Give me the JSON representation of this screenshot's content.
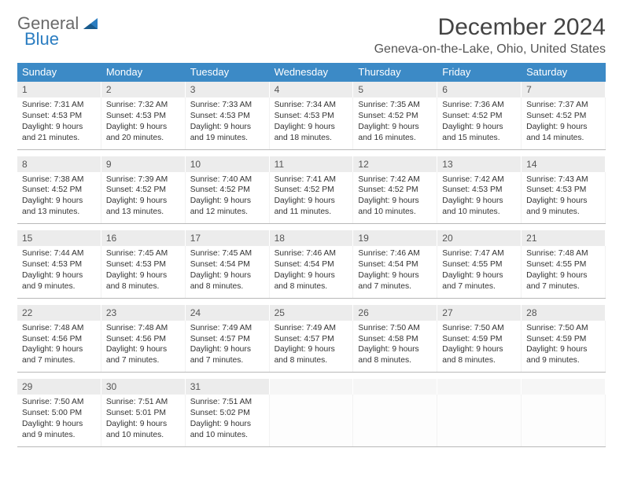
{
  "brand": {
    "part1": "General",
    "part2": "Blue",
    "accent_color": "#2b7dc1",
    "gray_color": "#6a6a6a"
  },
  "title": {
    "month": "December 2024",
    "location": "Geneva-on-the-Lake, Ohio, United States"
  },
  "colors": {
    "header_bg": "#3c8ac6",
    "header_fg": "#ffffff",
    "daynum_bg": "#ececec",
    "separator": "#b9b9b9",
    "text": "#333333"
  },
  "dow": [
    "Sunday",
    "Monday",
    "Tuesday",
    "Wednesday",
    "Thursday",
    "Friday",
    "Saturday"
  ],
  "weeks": [
    {
      "days": [
        {
          "n": "1",
          "sunrise": "Sunrise: 7:31 AM",
          "sunset": "Sunset: 4:53 PM",
          "day1": "Daylight: 9 hours",
          "day2": "and 21 minutes."
        },
        {
          "n": "2",
          "sunrise": "Sunrise: 7:32 AM",
          "sunset": "Sunset: 4:53 PM",
          "day1": "Daylight: 9 hours",
          "day2": "and 20 minutes."
        },
        {
          "n": "3",
          "sunrise": "Sunrise: 7:33 AM",
          "sunset": "Sunset: 4:53 PM",
          "day1": "Daylight: 9 hours",
          "day2": "and 19 minutes."
        },
        {
          "n": "4",
          "sunrise": "Sunrise: 7:34 AM",
          "sunset": "Sunset: 4:53 PM",
          "day1": "Daylight: 9 hours",
          "day2": "and 18 minutes."
        },
        {
          "n": "5",
          "sunrise": "Sunrise: 7:35 AM",
          "sunset": "Sunset: 4:52 PM",
          "day1": "Daylight: 9 hours",
          "day2": "and 16 minutes."
        },
        {
          "n": "6",
          "sunrise": "Sunrise: 7:36 AM",
          "sunset": "Sunset: 4:52 PM",
          "day1": "Daylight: 9 hours",
          "day2": "and 15 minutes."
        },
        {
          "n": "7",
          "sunrise": "Sunrise: 7:37 AM",
          "sunset": "Sunset: 4:52 PM",
          "day1": "Daylight: 9 hours",
          "day2": "and 14 minutes."
        }
      ]
    },
    {
      "days": [
        {
          "n": "8",
          "sunrise": "Sunrise: 7:38 AM",
          "sunset": "Sunset: 4:52 PM",
          "day1": "Daylight: 9 hours",
          "day2": "and 13 minutes."
        },
        {
          "n": "9",
          "sunrise": "Sunrise: 7:39 AM",
          "sunset": "Sunset: 4:52 PM",
          "day1": "Daylight: 9 hours",
          "day2": "and 13 minutes."
        },
        {
          "n": "10",
          "sunrise": "Sunrise: 7:40 AM",
          "sunset": "Sunset: 4:52 PM",
          "day1": "Daylight: 9 hours",
          "day2": "and 12 minutes."
        },
        {
          "n": "11",
          "sunrise": "Sunrise: 7:41 AM",
          "sunset": "Sunset: 4:52 PM",
          "day1": "Daylight: 9 hours",
          "day2": "and 11 minutes."
        },
        {
          "n": "12",
          "sunrise": "Sunrise: 7:42 AM",
          "sunset": "Sunset: 4:52 PM",
          "day1": "Daylight: 9 hours",
          "day2": "and 10 minutes."
        },
        {
          "n": "13",
          "sunrise": "Sunrise: 7:42 AM",
          "sunset": "Sunset: 4:53 PM",
          "day1": "Daylight: 9 hours",
          "day2": "and 10 minutes."
        },
        {
          "n": "14",
          "sunrise": "Sunrise: 7:43 AM",
          "sunset": "Sunset: 4:53 PM",
          "day1": "Daylight: 9 hours",
          "day2": "and 9 minutes."
        }
      ]
    },
    {
      "days": [
        {
          "n": "15",
          "sunrise": "Sunrise: 7:44 AM",
          "sunset": "Sunset: 4:53 PM",
          "day1": "Daylight: 9 hours",
          "day2": "and 9 minutes."
        },
        {
          "n": "16",
          "sunrise": "Sunrise: 7:45 AM",
          "sunset": "Sunset: 4:53 PM",
          "day1": "Daylight: 9 hours",
          "day2": "and 8 minutes."
        },
        {
          "n": "17",
          "sunrise": "Sunrise: 7:45 AM",
          "sunset": "Sunset: 4:54 PM",
          "day1": "Daylight: 9 hours",
          "day2": "and 8 minutes."
        },
        {
          "n": "18",
          "sunrise": "Sunrise: 7:46 AM",
          "sunset": "Sunset: 4:54 PM",
          "day1": "Daylight: 9 hours",
          "day2": "and 8 minutes."
        },
        {
          "n": "19",
          "sunrise": "Sunrise: 7:46 AM",
          "sunset": "Sunset: 4:54 PM",
          "day1": "Daylight: 9 hours",
          "day2": "and 7 minutes."
        },
        {
          "n": "20",
          "sunrise": "Sunrise: 7:47 AM",
          "sunset": "Sunset: 4:55 PM",
          "day1": "Daylight: 9 hours",
          "day2": "and 7 minutes."
        },
        {
          "n": "21",
          "sunrise": "Sunrise: 7:48 AM",
          "sunset": "Sunset: 4:55 PM",
          "day1": "Daylight: 9 hours",
          "day2": "and 7 minutes."
        }
      ]
    },
    {
      "days": [
        {
          "n": "22",
          "sunrise": "Sunrise: 7:48 AM",
          "sunset": "Sunset: 4:56 PM",
          "day1": "Daylight: 9 hours",
          "day2": "and 7 minutes."
        },
        {
          "n": "23",
          "sunrise": "Sunrise: 7:48 AM",
          "sunset": "Sunset: 4:56 PM",
          "day1": "Daylight: 9 hours",
          "day2": "and 7 minutes."
        },
        {
          "n": "24",
          "sunrise": "Sunrise: 7:49 AM",
          "sunset": "Sunset: 4:57 PM",
          "day1": "Daylight: 9 hours",
          "day2": "and 7 minutes."
        },
        {
          "n": "25",
          "sunrise": "Sunrise: 7:49 AM",
          "sunset": "Sunset: 4:57 PM",
          "day1": "Daylight: 9 hours",
          "day2": "and 8 minutes."
        },
        {
          "n": "26",
          "sunrise": "Sunrise: 7:50 AM",
          "sunset": "Sunset: 4:58 PM",
          "day1": "Daylight: 9 hours",
          "day2": "and 8 minutes."
        },
        {
          "n": "27",
          "sunrise": "Sunrise: 7:50 AM",
          "sunset": "Sunset: 4:59 PM",
          "day1": "Daylight: 9 hours",
          "day2": "and 8 minutes."
        },
        {
          "n": "28",
          "sunrise": "Sunrise: 7:50 AM",
          "sunset": "Sunset: 4:59 PM",
          "day1": "Daylight: 9 hours",
          "day2": "and 9 minutes."
        }
      ]
    },
    {
      "days": [
        {
          "n": "29",
          "sunrise": "Sunrise: 7:50 AM",
          "sunset": "Sunset: 5:00 PM",
          "day1": "Daylight: 9 hours",
          "day2": "and 9 minutes."
        },
        {
          "n": "30",
          "sunrise": "Sunrise: 7:51 AM",
          "sunset": "Sunset: 5:01 PM",
          "day1": "Daylight: 9 hours",
          "day2": "and 10 minutes."
        },
        {
          "n": "31",
          "sunrise": "Sunrise: 7:51 AM",
          "sunset": "Sunset: 5:02 PM",
          "day1": "Daylight: 9 hours",
          "day2": "and 10 minutes."
        },
        {
          "blank": true
        },
        {
          "blank": true
        },
        {
          "blank": true
        },
        {
          "blank": true
        }
      ]
    }
  ]
}
